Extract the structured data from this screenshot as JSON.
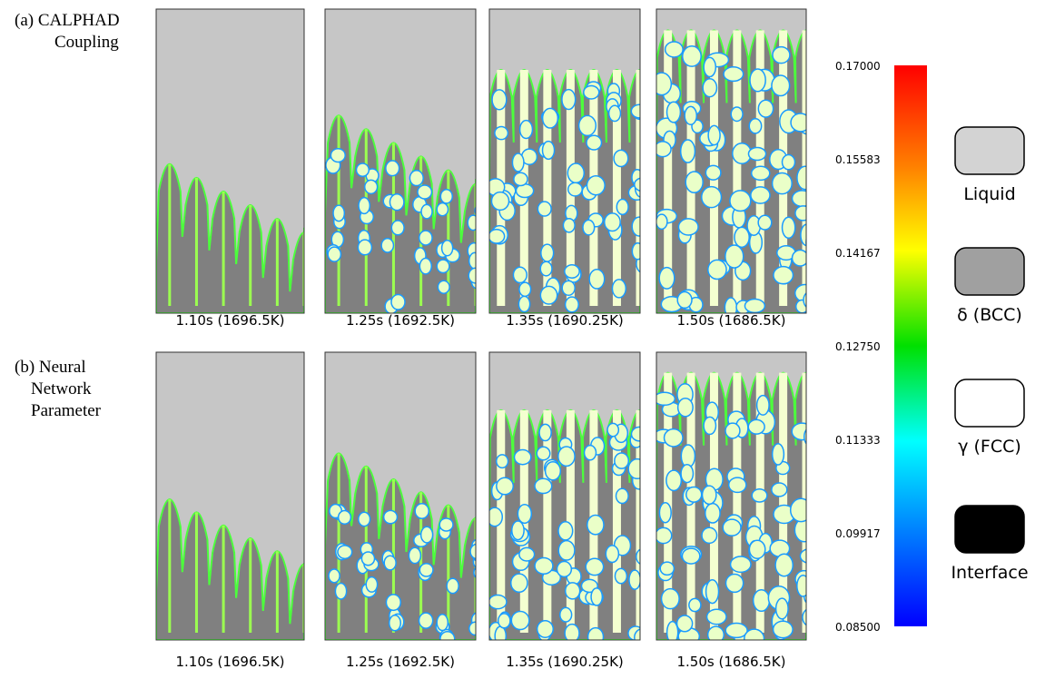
{
  "rows": [
    {
      "label": [
        "(a) CALPHAD",
        "Coupling"
      ],
      "captions": [
        "1.10s (1696.5K)",
        "1.25s (1692.5K)",
        "1.35s (1690.25K)",
        "1.50s (1686.5K)"
      ]
    },
    {
      "label": [
        "(b) Neural",
        "Network",
        "Parameter"
      ],
      "captions": [
        "1.10s (1696.5K)",
        "1.25s (1692.5K)",
        "1.35s (1690.25K)",
        "1.50s (1686.5K)"
      ]
    }
  ],
  "colorbar": {
    "labels": [
      "0.17000",
      "0.15583",
      "0.14167",
      "0.12750",
      "0.11333",
      "0.09917",
      "0.08500"
    ]
  },
  "legend": [
    {
      "label": "Liquid",
      "color": "#d3d3d3"
    },
    {
      "label": "δ (BCC)",
      "color": "#a0a0a0"
    },
    {
      "label": "γ (FCC)",
      "color": "#ffffff"
    },
    {
      "label": "Interface",
      "color": "#000000"
    }
  ]
}
